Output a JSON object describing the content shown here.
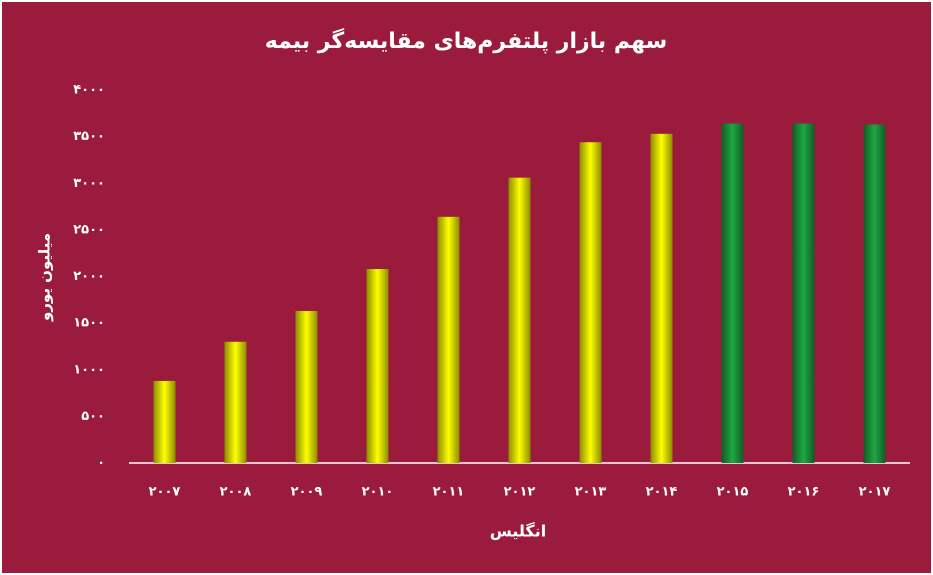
{
  "chart_data": {
    "type": "bar",
    "title": "سهم بازار پلتفرم‌های مقایسه‌گر بیمه",
    "y_label": "میلیون یورو",
    "x_label": "انگلیس",
    "categories": [
      "۲۰۰۷",
      "۲۰۰۸",
      "۲۰۰۹",
      "۲۰۱۰",
      "۲۰۱۱",
      "۲۰۱۲",
      "۲۰۱۳",
      "۲۰۱۴",
      "۲۰۱۵",
      "۲۰۱۶",
      "۲۰۱۷"
    ],
    "values": [
      880,
      1300,
      1630,
      2080,
      2640,
      3060,
      3440,
      3530,
      3640,
      3640,
      3630
    ],
    "colors": [
      "#ffff00",
      "#ffff00",
      "#ffff00",
      "#ffff00",
      "#ffff00",
      "#ffff00",
      "#ffff00",
      "#ffff00",
      "#1fa844",
      "#1fa844",
      "#1fa844"
    ],
    "ylim": [
      0,
      4000
    ],
    "yticks": [
      {
        "value": 0,
        "label": "۰"
      },
      {
        "value": 500,
        "label": "۵۰۰"
      },
      {
        "value": 1000,
        "label": "۱۰۰۰"
      },
      {
        "value": 1500,
        "label": "۱۵۰۰"
      },
      {
        "value": 2000,
        "label": "۲۰۰۰"
      },
      {
        "value": 2500,
        "label": "۲۵۰۰"
      },
      {
        "value": 3000,
        "label": "۳۰۰۰"
      },
      {
        "value": 3500,
        "label": "۳۵۰۰"
      },
      {
        "value": 4000,
        "label": "۴۰۰۰"
      }
    ],
    "grid": false
  }
}
